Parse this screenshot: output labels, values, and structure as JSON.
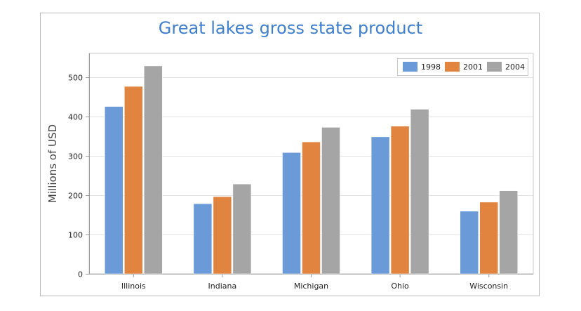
{
  "chart_data": {
    "type": "bar",
    "title": "Great lakes gross state product",
    "ylabel": "Millions of USD",
    "xlabel": "",
    "categories": [
      "Illinois",
      "Indiana",
      "Michigan",
      "Ohio",
      "Wisconsin"
    ],
    "series": [
      {
        "name": "1998",
        "color": "#6a9bd8",
        "values": [
          425,
          178,
          308,
          348,
          159
        ]
      },
      {
        "name": "2001",
        "color": "#e08440",
        "values": [
          476,
          196,
          335,
          375,
          182
        ]
      },
      {
        "name": "2004",
        "color": "#a5a5a5",
        "values": [
          528,
          228,
          372,
          418,
          211
        ]
      }
    ],
    "yticks": [
      0,
      100,
      200,
      300,
      400,
      500
    ],
    "ylim": [
      0,
      560
    ],
    "grid": true,
    "legend_position": "top-right"
  }
}
